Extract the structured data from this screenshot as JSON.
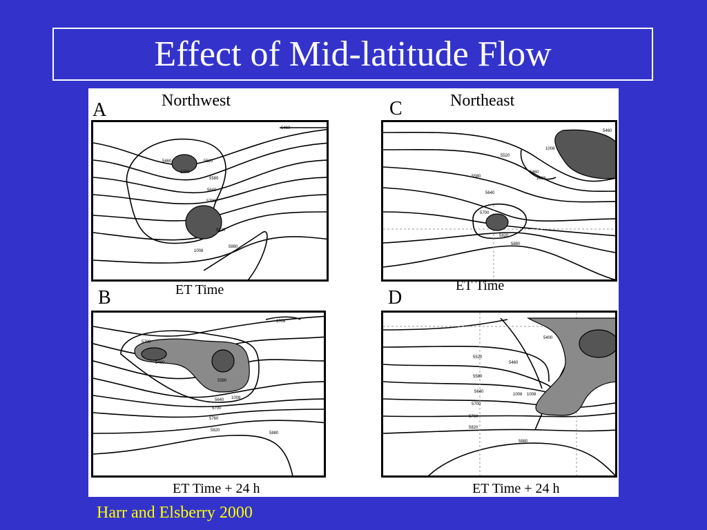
{
  "slide": {
    "title": "Effect of Mid-latitude Flow",
    "citation": "Harr and Elsberry 2000"
  },
  "figure": {
    "top_left": {
      "letter": "A",
      "heading": "Northwest",
      "caption": "ET Time"
    },
    "top_right": {
      "letter": "C",
      "heading": "Northeast",
      "caption": "ET Time"
    },
    "bottom_left": {
      "letter": "B",
      "caption": "ET Time + 24 h"
    },
    "bottom_right": {
      "letter": "D",
      "caption": "ET Time + 24 h"
    }
  },
  "colors": {
    "background": "#3333cc",
    "title_text": "#ffffff",
    "citation_text": "#ffff00",
    "shading_dark": "#555555",
    "shading_light": "#8a8a8a"
  }
}
